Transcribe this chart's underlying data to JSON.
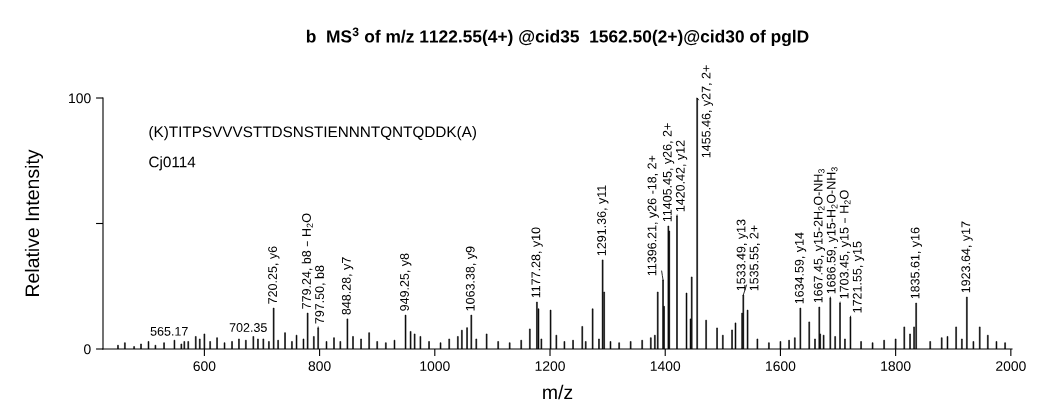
{
  "chart_data": {
    "type": "bar",
    "title": "b  MS$^{3}$ of m/z 1122.55(4+) @cid35  1562.50(2+)@cid30 of pglD",
    "xlabel": "m/z",
    "ylabel": "Relative Intensity",
    "color": "#000000",
    "x": [
      450,
      462,
      478,
      490,
      503,
      515,
      530,
      548,
      560,
      565.17,
      572,
      585,
      592,
      600,
      610,
      622,
      635,
      648,
      660,
      672,
      685,
      693,
      702.35,
      712,
      720.25,
      728,
      740,
      752,
      760,
      772,
      779.24,
      790,
      797.5,
      812,
      825,
      836,
      848.28,
      858,
      872,
      886,
      900,
      915,
      930,
      949.25,
      958,
      965,
      975,
      990,
      1010,
      1025,
      1040,
      1047,
      1056,
      1063.38,
      1072,
      1090,
      1110,
      1130,
      1150,
      1165,
      1177.28,
      1180,
      1185,
      1201,
      1211,
      1225,
      1240,
      1256,
      1262,
      1274,
      1285,
      1291.36,
      1294,
      1305,
      1320,
      1340,
      1360,
      1375,
      1382,
      1387,
      1396.21,
      1398,
      1405.45,
      1407,
      1420.42,
      1437,
      1444,
      1446,
      1455.46,
      1471,
      1490,
      1500,
      1516,
      1522,
      1533.49,
      1535.55,
      1543,
      1560,
      1580,
      1600,
      1615,
      1625,
      1634.59,
      1650,
      1660,
      1667.45,
      1669,
      1675,
      1686.59,
      1695,
      1703.45,
      1712,
      1721.55,
      1740,
      1760,
      1780,
      1800,
      1815,
      1825,
      1832,
      1835.61,
      1860,
      1880,
      1890,
      1905,
      1915,
      1923.64,
      1935,
      1946,
      1960,
      1975,
      1990
    ],
    "values": [
      1.5,
      2.5,
      1,
      2,
      3,
      1.5,
      2.5,
      3.5,
      2,
      3,
      3,
      5,
      4,
      6,
      3,
      4.5,
      2.5,
      3,
      4,
      3.5,
      5,
      4,
      4,
      3,
      16.3,
      3.5,
      6.5,
      3,
      5.5,
      4,
      14.3,
      5,
      8.4,
      3,
      4.5,
      3,
      12,
      5,
      4,
      6.5,
      3,
      2.5,
      3.5,
      13.5,
      7,
      6,
      5,
      3,
      2.5,
      4,
      5,
      7.5,
      8.5,
      13.5,
      4,
      6,
      3,
      2.5,
      3.5,
      8,
      18.7,
      16,
      4,
      15.5,
      5.5,
      3,
      3.5,
      9,
      3,
      16,
      4,
      35.5,
      22.7,
      3,
      2.5,
      3,
      3.5,
      4.5,
      5.5,
      22.7,
      27.5,
      17,
      49,
      47,
      53,
      22.3,
      12,
      28.7,
      100,
      11.5,
      8.4,
      5.5,
      7.6,
      10.4,
      14.3,
      21.5,
      15.5,
      4,
      2.5,
      3,
      3.5,
      4.5,
      16.3,
      10.8,
      4,
      16.7,
      6,
      5.5,
      20.3,
      5,
      18.3,
      4,
      12.7,
      3,
      2.5,
      3.5,
      4,
      8.8,
      6,
      8.8,
      18.3,
      3,
      4.5,
      5,
      8.8,
      4,
      20.7,
      3,
      8.8,
      5.5,
      3,
      2.5
    ],
    "xlim": [
      424,
      2002
    ],
    "xticks": [
      600,
      800,
      1000,
      1200,
      1400,
      1600,
      1800,
      2000
    ],
    "ylim": [
      0,
      100
    ],
    "yticks": [
      0,
      {
        "value": 50,
        "label": null
      },
      100
    ],
    "annotations": [
      "(K)TITPSVVVSTTDSNSTIENNNTQNTQDDK(A)",
      "Cj0114",
      {
        "text": "565.17",
        "x": 565.17,
        "y": 3
      },
      {
        "text": "702.35",
        "x": 702.35,
        "y": 4
      },
      {
        "text": "720.25, y6",
        "x": 720.25,
        "y": 16.3
      },
      {
        "text": "779.24, b8 – H$_{2}$O",
        "x": 779.24,
        "y": 14.3
      },
      {
        "text": "797.50, b8",
        "x": 797.5,
        "y": 8.4
      },
      {
        "text": "848.28, y7",
        "x": 848.28,
        "y": 12
      },
      {
        "text": "949.25, y8",
        "x": 949.25,
        "y": 13.5
      },
      {
        "text": "1063.38, y9",
        "x": 1063.38,
        "y": 13.5
      },
      {
        "text": "1177.28, y10",
        "x": 1177.28,
        "y": 18.7
      },
      {
        "text": "1291.36, y11",
        "x": 1291.36,
        "y": 35.5
      },
      {
        "text": "11396.21, y26 -18, 2+",
        "x": 1396.21,
        "y": 27.5
      },
      {
        "text": "11405.45, y26, 2+",
        "x": 1405.45,
        "y": 49
      },
      {
        "text": "1420.42, y12",
        "x": 1420.42,
        "y": 53
      },
      {
        "text": "1455.46, y27, 2+",
        "x": 1455.46,
        "y": 100
      },
      {
        "text": "1533.49, y13",
        "x": 1533.49,
        "y": 14.3
      },
      {
        "text": "1535.55, 2+",
        "x": 1535.55,
        "y": 21.5
      },
      {
        "text": "1634.59, y14",
        "x": 1634.59,
        "y": 16.3
      },
      {
        "text": "1667.45, y15-2H$_{2}$O-NH$_{3}$",
        "x": 1667.45,
        "y": 16.7
      },
      {
        "text": "1686.59, y15-H$_{2}$O-NH$_{3}$",
        "x": 1686.59,
        "y": 20.3
      },
      {
        "text": "1703.45, y15 – H$_{2}$O",
        "x": 1703.45,
        "y": 18.3
      },
      {
        "text": "1721.55, y15",
        "x": 1721.55,
        "y": 12.7
      },
      {
        "text": "1835.61, y16",
        "x": 1835.61,
        "y": 18.3
      },
      {
        "text": "1923.64, y17",
        "x": 1923.64,
        "y": 20.7
      }
    ]
  }
}
